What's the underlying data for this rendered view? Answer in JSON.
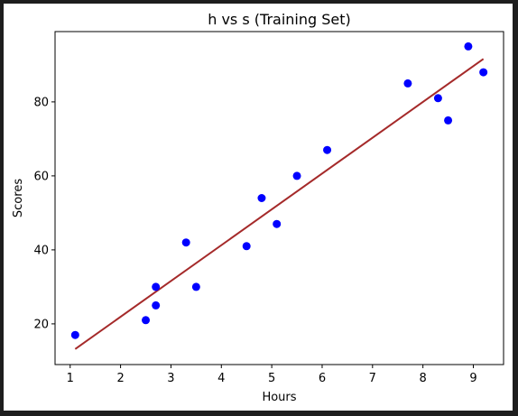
{
  "chart_data": {
    "type": "scatter",
    "title": "h vs s (Training Set)",
    "xlabel": "Hours",
    "ylabel": "Scores",
    "xlim": [
      0.7,
      9.6
    ],
    "ylim": [
      9,
      99
    ],
    "xticks": [
      1,
      2,
      3,
      4,
      5,
      6,
      7,
      8,
      9
    ],
    "yticks": [
      20,
      40,
      60,
      80
    ],
    "grid": false,
    "colors": {
      "points": "#0000ff",
      "line": "#a52a2a"
    },
    "series": [
      {
        "type": "scatter",
        "x": [
          1.1,
          2.5,
          2.7,
          2.7,
          3.3,
          3.5,
          4.5,
          4.8,
          5.1,
          5.5,
          6.1,
          7.7,
          8.3,
          8.5,
          8.9,
          9.2
        ],
        "y": [
          17,
          21,
          25,
          30,
          42,
          30,
          41,
          54,
          47,
          60,
          67,
          85,
          81,
          75,
          95,
          88
        ]
      },
      {
        "type": "line",
        "x": [
          1.1,
          9.2
        ],
        "y": [
          13.2,
          91.6
        ]
      }
    ]
  }
}
